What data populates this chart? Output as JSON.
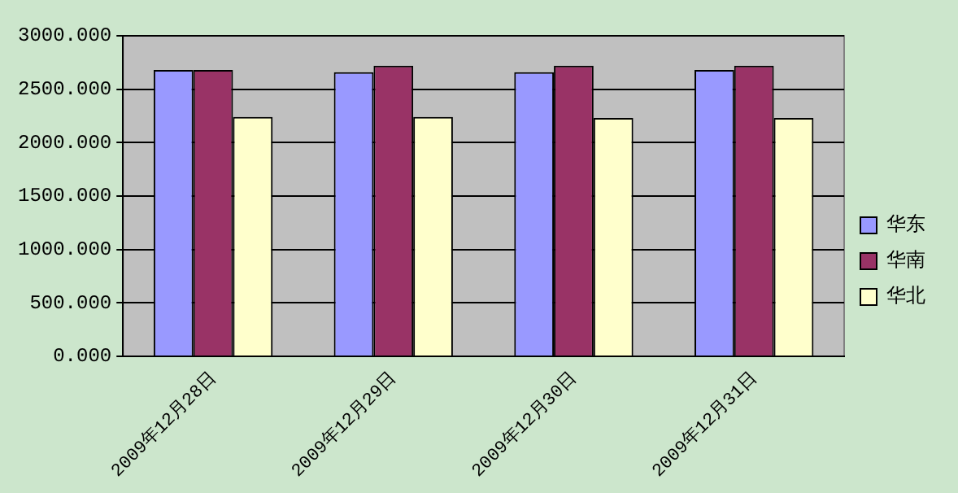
{
  "chart_data": {
    "type": "bar",
    "categories": [
      "2009年12月28日",
      "2009年12月29日",
      "2009年12月30日",
      "2009年12月31日"
    ],
    "series": [
      {
        "name": "华东",
        "color": "#9999ff",
        "values": [
          2680,
          2660,
          2660,
          2680
        ]
      },
      {
        "name": "华南",
        "color": "#993366",
        "values": [
          2680,
          2720,
          2720,
          2720
        ]
      },
      {
        "name": "华北",
        "color": "#ffffcc",
        "values": [
          2240,
          2240,
          2230,
          2230
        ]
      }
    ],
    "ylim": [
      0,
      3000
    ],
    "yticks": [
      {
        "value": 0,
        "label": "0.000"
      },
      {
        "value": 500,
        "label": "500.000"
      },
      {
        "value": 1000,
        "label": "1000.000"
      },
      {
        "value": 1500,
        "label": "1500.000"
      },
      {
        "value": 2000,
        "label": "2000.000"
      },
      {
        "value": 2500,
        "label": "2500.000"
      },
      {
        "value": 3000,
        "label": "3000.000"
      }
    ],
    "grid": "y",
    "legend": "right"
  }
}
